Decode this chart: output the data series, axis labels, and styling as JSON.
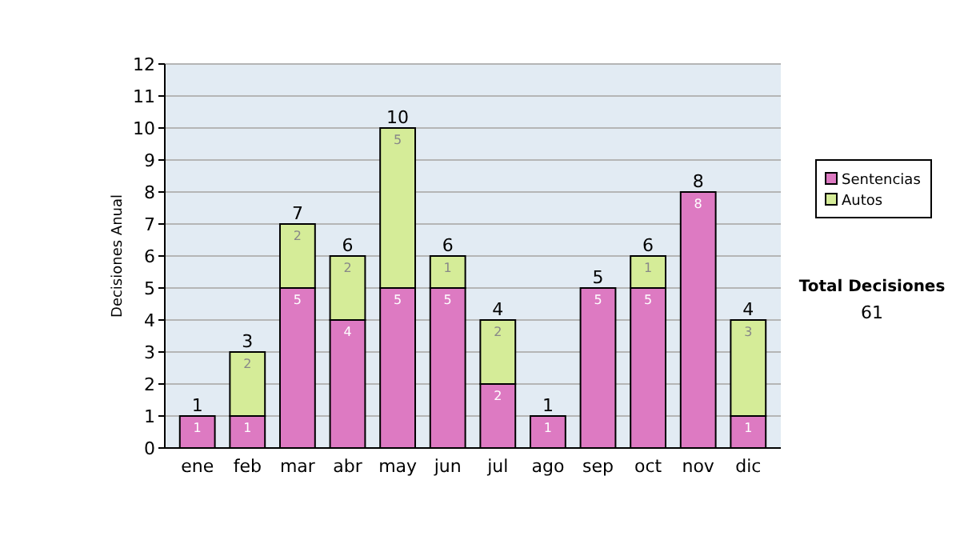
{
  "chart_data": {
    "type": "bar",
    "stacked": true,
    "ylabel": "Decisiones Anual",
    "categories": [
      "ene",
      "feb",
      "mar",
      "abr",
      "may",
      "jun",
      "jul",
      "ago",
      "sep",
      "oct",
      "nov",
      "dic"
    ],
    "series": [
      {
        "name": "Sentencias",
        "color": "#dd7ac2",
        "values": [
          1,
          1,
          5,
          4,
          5,
          5,
          2,
          1,
          5,
          5,
          8,
          1
        ]
      },
      {
        "name": "Autos",
        "color": "#d5ec98",
        "values": [
          null,
          2,
          2,
          2,
          5,
          1,
          2,
          null,
          null,
          1,
          null,
          3
        ]
      }
    ],
    "data_labels": true,
    "totals": [
      "1",
      "3",
      "7",
      "6",
      "10",
      "6",
      "4",
      "1",
      "5",
      "6",
      "8",
      "4"
    ],
    "ylim": [
      0,
      12
    ],
    "yticks": [
      0,
      1,
      2,
      3,
      4,
      5,
      6,
      7,
      8,
      9,
      10,
      11,
      12
    ],
    "grid": "y",
    "legend": "right",
    "annotations": [
      "Total Decisiones",
      "61"
    ]
  }
}
